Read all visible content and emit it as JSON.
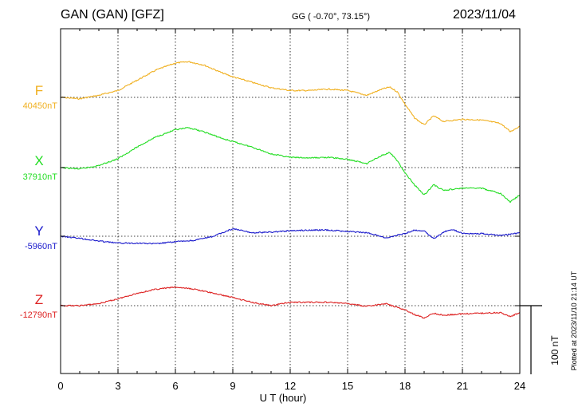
{
  "header": {
    "station": "GAN (GAN)  [GFZ]",
    "coords": "GG ( -0.70°,  73.15°)",
    "date": "2023/11/04"
  },
  "footer": {
    "plotted": "Plotted at 2023/11/10 21:14 UT"
  },
  "chart_data": {
    "type": "line",
    "xlabel": "U T (hour)",
    "xlim": [
      0,
      24
    ],
    "xticks": [
      "0",
      "3",
      "6",
      "9",
      "12",
      "15",
      "18",
      "21",
      "24"
    ],
    "grid": true,
    "scale_bar": {
      "label": "100 nT",
      "value_nT": 100
    },
    "series": [
      {
        "name": "F",
        "baseline_label": "40450nT",
        "color": "#f0b020",
        "x": [
          0,
          1,
          2,
          3,
          4,
          5,
          6,
          6.7,
          7.5,
          8.5,
          9,
          10,
          11,
          12,
          13,
          14,
          15,
          16,
          16.8,
          17.2,
          17.6,
          18,
          18.5,
          19,
          19.5,
          20,
          21,
          22,
          23,
          23.5,
          24
        ],
        "y": [
          0,
          -2,
          3,
          10,
          25,
          40,
          50,
          52,
          47,
          35,
          30,
          22,
          14,
          10,
          10,
          12,
          10,
          3,
          12,
          15,
          8,
          -10,
          -30,
          -40,
          -27,
          -35,
          -32,
          -33,
          -38,
          -50,
          -42
        ]
      },
      {
        "name": "X",
        "baseline_label": "37910nT",
        "color": "#22dd22",
        "x": [
          0,
          1,
          2,
          3,
          4,
          5,
          6,
          6.7,
          7.5,
          8.5,
          9,
          10,
          11,
          12,
          13,
          14,
          15,
          16,
          16.8,
          17.2,
          17.6,
          18,
          18.5,
          19,
          19.5,
          20,
          21,
          22,
          23,
          23.5,
          24
        ],
        "y": [
          0,
          -2,
          3,
          13,
          30,
          45,
          55,
          58,
          52,
          42,
          38,
          30,
          20,
          15,
          14,
          15,
          12,
          6,
          18,
          22,
          10,
          -8,
          -25,
          -40,
          -25,
          -33,
          -30,
          -30,
          -38,
          -50,
          -40
        ]
      },
      {
        "name": "Y",
        "baseline_label": "-5960nT",
        "color": "#1a1acc",
        "x": [
          0,
          1,
          2,
          3,
          4,
          5,
          6,
          7,
          8,
          9,
          10,
          11,
          12,
          13,
          14,
          15,
          16,
          16.5,
          17,
          17.5,
          18,
          18.5,
          19,
          19.5,
          20,
          20.5,
          21,
          22,
          23,
          24
        ],
        "y": [
          0,
          -3,
          -7,
          -10,
          -10,
          -11,
          -8,
          -6,
          0,
          11,
          5,
          6,
          8,
          9,
          9,
          7,
          5,
          2,
          -3,
          1,
          4,
          9,
          8,
          -4,
          6,
          10,
          4,
          4,
          1,
          5
        ]
      },
      {
        "name": "Z",
        "baseline_label": "-12790nT",
        "color": "#dd2222",
        "x": [
          0,
          1,
          2,
          3,
          4,
          5,
          6,
          7,
          8,
          9,
          10,
          11,
          12,
          13,
          14,
          15,
          16,
          16.5,
          17,
          17.5,
          18,
          18.5,
          19,
          19.5,
          20,
          21,
          22,
          23,
          23.5,
          24
        ],
        "y": [
          0,
          0,
          3,
          10,
          18,
          24,
          27,
          24,
          18,
          12,
          5,
          0,
          5,
          5,
          5,
          3,
          -1,
          1,
          3,
          -2,
          -6,
          -13,
          -18,
          -11,
          -14,
          -12,
          -11,
          -10,
          -16,
          -10
        ]
      }
    ]
  }
}
